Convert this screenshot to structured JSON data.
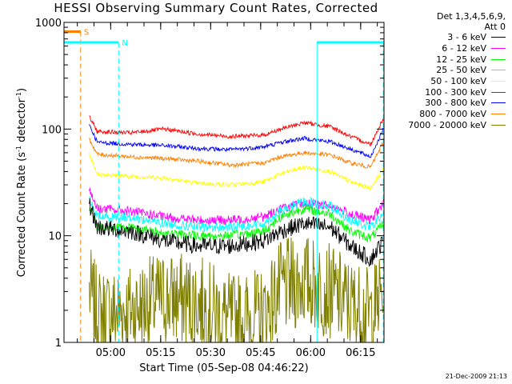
{
  "title": "HESSI Observing Summary Count Rates, Corrected",
  "xlabel": "Start Time (05-Sep-08 04:46:22)",
  "ylabel_main": "Corrected Count Rate (s",
  "ylabel_sup1": "-1",
  "ylabel_mid": " detector",
  "ylabel_sup2": "-1",
  "ylabel_end": ")",
  "legend_header": [
    "Det 1,3,4,5,6,9,",
    "Att 0"
  ],
  "footer": "21-Dec-2009 21:13",
  "chart_data": {
    "type": "line",
    "title": "HESSI Observing Summary Count Rates, Corrected",
    "xlabel": "Start Time (05-Sep-08 04:46:22)",
    "ylabel": "Corrected Count Rate (s^-1 detector^-1)",
    "yscale": "log",
    "ylim": [
      1,
      1000
    ],
    "y_ticks": [
      1,
      10,
      100,
      1000
    ],
    "xlim_minutes_after_0446": [
      0,
      96
    ],
    "x_ticks": [
      "05:00",
      "05:15",
      "05:30",
      "05:45",
      "06:00",
      "06:15"
    ],
    "x_ticks_minutes_after_0446": [
      14,
      29,
      44,
      59,
      74,
      89
    ],
    "data_start_min": 7.6,
    "data_end_min": 95.8,
    "series": [
      {
        "name": "3 - 6 keV",
        "color": "#000000",
        "x": [
          7.6,
          10,
          20,
          30,
          40,
          50,
          60,
          65,
          72,
          80,
          86,
          92,
          95.8
        ],
        "values": [
          20,
          12,
          11,
          9,
          8,
          8,
          9,
          11,
          13,
          12,
          8,
          6,
          9
        ]
      },
      {
        "name": "6 - 12 keV",
        "color": "#ff00ff",
        "x": [
          7.6,
          10,
          20,
          30,
          40,
          50,
          60,
          65,
          72,
          80,
          86,
          92,
          95.8
        ],
        "values": [
          27,
          18,
          17,
          15,
          14,
          14,
          15,
          18,
          20,
          19,
          16,
          14,
          20
        ]
      },
      {
        "name": "12 - 25 keV",
        "color": "#00ff00",
        "x": [
          7.6,
          10,
          20,
          30,
          40,
          50,
          60,
          65,
          72,
          80,
          86,
          92,
          95.8
        ],
        "values": [
          18,
          12,
          12,
          10.5,
          10,
          10,
          11,
          15,
          18,
          16,
          11,
          9.5,
          13
        ]
      },
      {
        "name": "25 - 50 keV",
        "color": "#00ffff",
        "x": [
          7.6,
          10,
          20,
          30,
          40,
          50,
          60,
          65,
          72,
          80,
          86,
          92,
          95.8
        ],
        "values": [
          22,
          15,
          15,
          13,
          12,
          12,
          13,
          17,
          21,
          19,
          14,
          12,
          16
        ]
      },
      {
        "name": "50 - 100 keV",
        "color": "#ffff00",
        "x": [
          7.6,
          10,
          20,
          30,
          40,
          50,
          60,
          65,
          72,
          80,
          86,
          92,
          95.8
        ],
        "values": [
          58,
          38,
          36,
          35,
          31,
          30,
          32,
          38,
          44,
          40,
          32,
          28,
          42
        ]
      },
      {
        "name": "100 - 300 keV",
        "color": "#ff0000",
        "x": [
          7.6,
          10,
          20,
          30,
          40,
          50,
          60,
          65,
          72,
          80,
          86,
          92,
          95.8
        ],
        "values": [
          130,
          95,
          92,
          100,
          90,
          85,
          88,
          100,
          115,
          105,
          85,
          72,
          125
        ]
      },
      {
        "name": "300 - 800 keV",
        "color": "#0000ff",
        "x": [
          7.6,
          10,
          20,
          30,
          40,
          50,
          60,
          65,
          72,
          80,
          86,
          92,
          95.8
        ],
        "values": [
          110,
          75,
          72,
          70,
          66,
          64,
          68,
          75,
          82,
          76,
          65,
          55,
          100
        ]
      },
      {
        "name": "800 - 7000 keV",
        "color": "#ff8000",
        "x": [
          7.6,
          10,
          20,
          30,
          40,
          50,
          60,
          65,
          72,
          80,
          86,
          92,
          95.8
        ],
        "values": [
          80,
          58,
          55,
          53,
          50,
          46,
          48,
          55,
          60,
          57,
          48,
          44,
          75
        ]
      },
      {
        "name": "7000 - 20000 keV",
        "color": "#808000",
        "x": [
          7.6,
          10,
          20,
          30,
          40,
          50,
          60,
          65,
          72,
          80,
          86,
          92,
          95.8
        ],
        "values": [
          3,
          1.8,
          2,
          2.6,
          2.4,
          1.6,
          1.8,
          3.2,
          3.8,
          3,
          2.2,
          1.8,
          3
        ]
      }
    ],
    "flag_bars": [
      {
        "label": "S",
        "color": "#ff8000",
        "y": 820,
        "x_start_min": 0,
        "x_end_min": 5,
        "dashed_at_min": 5
      },
      {
        "label": "N",
        "color": "#00ffff",
        "y": 650,
        "x_start_min": 0,
        "x_end_min": 16.4,
        "dashed_at_min": 16.4
      },
      {
        "label": "",
        "color": "#00ffff",
        "y": 650,
        "x_start_min": 75.9,
        "x_end_min": 96,
        "solid_at_min": 75.9,
        "dashed_at_min": 95.8
      }
    ]
  }
}
